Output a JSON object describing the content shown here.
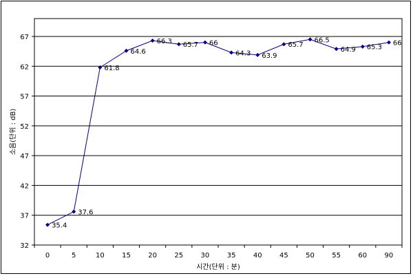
{
  "chart_data": {
    "type": "line",
    "xlabel": "시간(단위 : 분)",
    "ylabel": "소음(단위 : dB)",
    "categories": [
      "0",
      "5",
      "10",
      "15",
      "20",
      "25",
      "30",
      "35",
      "40",
      "45",
      "50",
      "55",
      "60",
      "90"
    ],
    "series": [
      {
        "values": [
          35.4,
          37.6,
          61.8,
          64.6,
          66.3,
          65.7,
          66,
          64.3,
          63.9,
          65.7,
          66.5,
          64.9,
          65.3,
          66
        ],
        "labels": [
          "35.4",
          "37.6",
          "61.8",
          "64.6",
          "66.3",
          "65.7",
          "66",
          "64.3",
          "63.9",
          "65.7",
          "66.5",
          "64.9",
          "65.3",
          "66"
        ]
      }
    ],
    "y_ticks": [
      "32",
      "37",
      "42",
      "47",
      "52",
      "57",
      "62",
      "67"
    ],
    "ylim": [
      32,
      70
    ],
    "grid": "horizontal",
    "legend": "none",
    "line_color": "#000080"
  }
}
